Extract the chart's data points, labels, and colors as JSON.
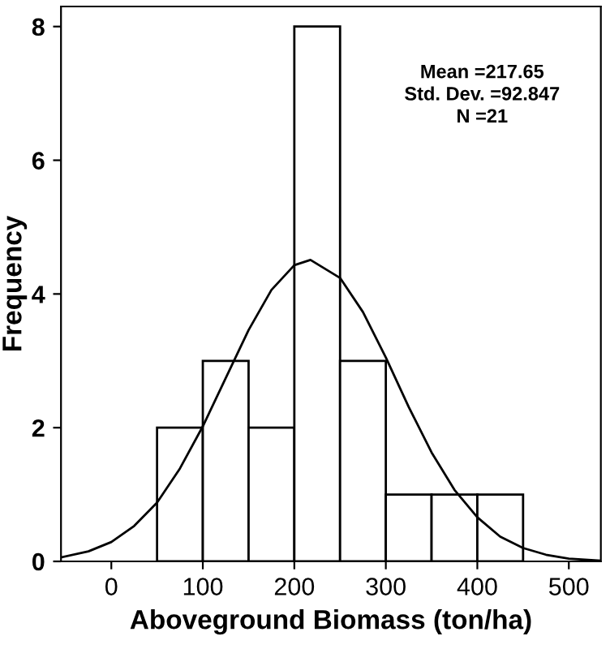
{
  "chart_data": {
    "type": "histogram",
    "xlabel": "Aboveground Biomass (ton/ha)",
    "ylabel": "Frequency",
    "bins": [
      50,
      100,
      150,
      200,
      250,
      300,
      350,
      400,
      450
    ],
    "values": [
      2,
      3,
      2,
      8,
      3,
      1,
      1,
      1
    ],
    "color": "#ffffff",
    "series": [
      {
        "type": "line",
        "color": "#000000",
        "x": [
          -55,
          -25,
          0,
          25,
          50,
          75,
          100,
          125,
          150,
          175,
          200,
          217.65,
          250,
          275,
          300,
          325,
          350,
          375,
          400,
          425,
          450,
          475,
          500,
          535
        ],
        "values": [
          0.06,
          0.15,
          0.29,
          0.53,
          0.88,
          1.39,
          2.02,
          2.74,
          3.46,
          4.06,
          4.43,
          4.51,
          4.24,
          3.73,
          3.05,
          2.31,
          1.63,
          1.07,
          0.66,
          0.37,
          0.2,
          0.1,
          0.04,
          0.01
        ]
      }
    ],
    "xlim": [
      -55,
      535
    ],
    "ylim": [
      0,
      8.3
    ],
    "xticks": [
      0,
      100,
      200,
      300,
      400,
      500
    ],
    "yticks": [
      0,
      2,
      4,
      6,
      8
    ],
    "grid": false,
    "legend": false,
    "annotations": [
      "Mean =217.65",
      "Std. Dev. =92.847",
      "N =21"
    ]
  }
}
